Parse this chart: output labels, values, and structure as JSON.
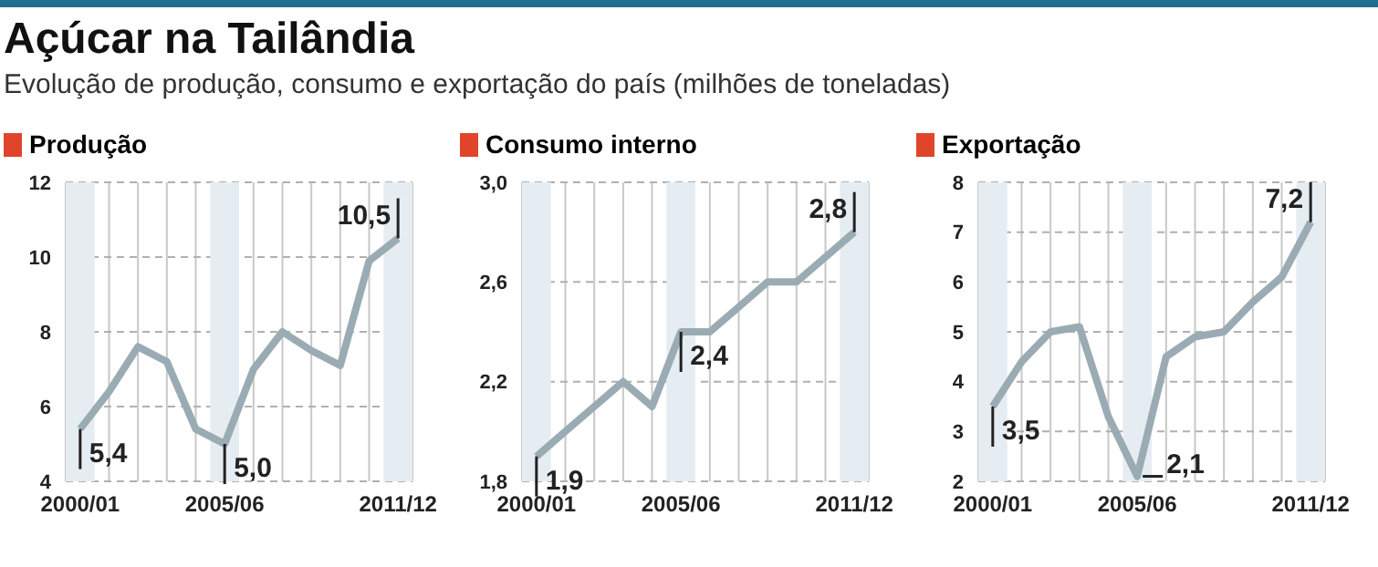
{
  "chart_data": [
    {
      "type": "line",
      "title": "Produção",
      "annotations": [
        "Açúcar na Tailândia",
        "Evolução de produção, consumo e exportação do país (milhões de toneladas)",
        {
          "text": "5,4",
          "x": "2000/01",
          "y": 5.4
        },
        {
          "text": "5,0",
          "x": "2005/06",
          "y": 5.0
        },
        {
          "text": "10,5",
          "x": "2011/12",
          "y": 10.5
        }
      ],
      "categories": [
        "2000/01",
        null,
        null,
        null,
        null,
        "2005/06",
        null,
        null,
        null,
        null,
        null,
        "2011/12"
      ],
      "series": [
        {
          "color": "#9aabb3",
          "values": [
            5.4,
            6.4,
            7.6,
            7.2,
            5.4,
            5.0,
            7.0,
            8.0,
            7.5,
            7.1,
            9.9,
            10.5
          ]
        }
      ],
      "ylim": [
        4,
        12
      ],
      "yticks": [
        4,
        6,
        8,
        10,
        12
      ],
      "grid": true,
      "marker": "none",
      "line_style": "solid",
      "bands": [
        {
          "axis": "x",
          "from": "2000/01",
          "to": "2000/01",
          "color": "#e6edf2"
        },
        {
          "axis": "x",
          "from": "2005/06",
          "to": "2005/06",
          "color": "#e6edf2"
        },
        {
          "axis": "x",
          "from": "2011/12",
          "to": "2011/12",
          "color": "#e6edf2"
        }
      ]
    },
    {
      "type": "line",
      "title": "Consumo interno",
      "annotations": [
        {
          "text": "1,9",
          "x": "2000/01",
          "y": 1.9
        },
        {
          "text": "2,4",
          "x": "2005/06",
          "y": 2.4
        },
        {
          "text": "2,8",
          "x": "2011/12",
          "y": 2.8
        }
      ],
      "categories": [
        "2000/01",
        null,
        null,
        null,
        null,
        "2005/06",
        null,
        null,
        null,
        null,
        null,
        "2011/12"
      ],
      "series": [
        {
          "color": "#9aabb3",
          "values": [
            1.9,
            2.0,
            2.1,
            2.2,
            2.1,
            2.4,
            2.4,
            2.5,
            2.6,
            2.6,
            2.7,
            2.8
          ]
        }
      ],
      "ylim": [
        1.8,
        3.0
      ],
      "yticks": [
        {
          "value": 1.8,
          "label": "1,8"
        },
        {
          "value": 2.2,
          "label": "2,2"
        },
        {
          "value": 2.6,
          "label": "2,6"
        },
        {
          "value": 3.0,
          "label": "3,0"
        }
      ],
      "grid": true,
      "marker": "none",
      "line_style": "solid",
      "bands": [
        {
          "axis": "x",
          "from": "2000/01",
          "to": "2000/01",
          "color": "#e6edf2"
        },
        {
          "axis": "x",
          "from": "2005/06",
          "to": "2005/06",
          "color": "#e6edf2"
        },
        {
          "axis": "x",
          "from": "2011/12",
          "to": "2011/12",
          "color": "#e6edf2"
        }
      ]
    },
    {
      "type": "line",
      "title": "Exportação",
      "annotations": [
        {
          "text": "3,5",
          "x": "2000/01",
          "y": 3.5
        },
        {
          "text": "2,1",
          "x": "2005/06",
          "y": 2.1
        },
        {
          "text": "7,2",
          "x": "2011/12",
          "y": 7.2
        }
      ],
      "categories": [
        "2000/01",
        null,
        null,
        null,
        null,
        "2005/06",
        null,
        null,
        null,
        null,
        null,
        "2011/12"
      ],
      "series": [
        {
          "color": "#9aabb3",
          "values": [
            3.5,
            4.4,
            5.0,
            5.1,
            3.3,
            2.1,
            4.5,
            4.9,
            5.0,
            5.6,
            6.1,
            7.2
          ]
        }
      ],
      "ylim": [
        2,
        8
      ],
      "yticks": [
        2,
        3,
        4,
        5,
        6,
        7,
        8
      ],
      "grid": true,
      "marker": "none",
      "line_style": "solid",
      "bands": [
        {
          "axis": "x",
          "from": "2000/01",
          "to": "2000/01",
          "color": "#e6edf2"
        },
        {
          "axis": "x",
          "from": "2005/06",
          "to": "2005/06",
          "color": "#e6edf2"
        },
        {
          "axis": "x",
          "from": "2011/12",
          "to": "2011/12",
          "color": "#e6edf2"
        }
      ]
    }
  ]
}
